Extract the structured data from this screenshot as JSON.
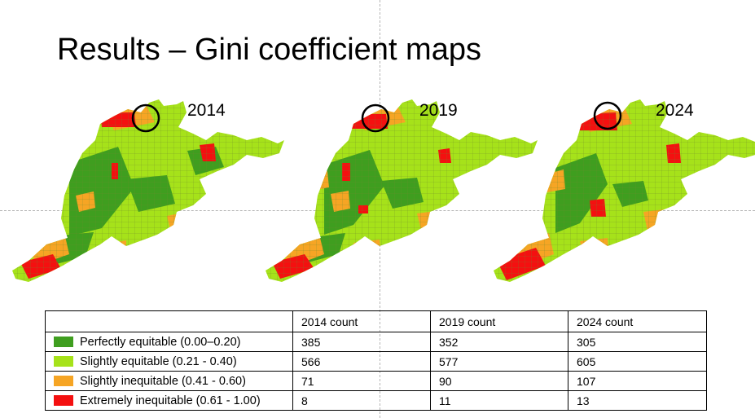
{
  "title": "Results – Gini coefficient maps",
  "colors": {
    "perfectly_equitable": "#3f9e1f",
    "slightly_equitable": "#a6e21a",
    "slightly_inequitable": "#f6a524",
    "extremely_inequitable": "#f41010",
    "highlight_circle": "#000000"
  },
  "maps": [
    {
      "year": "2014"
    },
    {
      "year": "2019"
    },
    {
      "year": "2024"
    }
  ],
  "table": {
    "headers": [
      "",
      "2014 count",
      "2019 count",
      "2024 count"
    ],
    "rows": [
      {
        "category": "Perfectly equitable  (0.00–0.20)",
        "color": "#3f9e1f",
        "c2014": "385",
        "c2019": "352",
        "c2024": "305"
      },
      {
        "category": "Slightly equitable  (0.21 - 0.40)",
        "color": "#a6e21a",
        "c2014": "566",
        "c2019": "577",
        "c2024": "605"
      },
      {
        "category": "Slightly inequitable  (0.41 - 0.60)",
        "color": "#f6a524",
        "c2014": "71",
        "c2019": "90",
        "c2024": "107"
      },
      {
        "category": "Extremely inequitable  (0.61 - 1.00)",
        "color": "#f41010",
        "c2014": "8",
        "c2019": "11",
        "c2024": "13"
      }
    ]
  }
}
